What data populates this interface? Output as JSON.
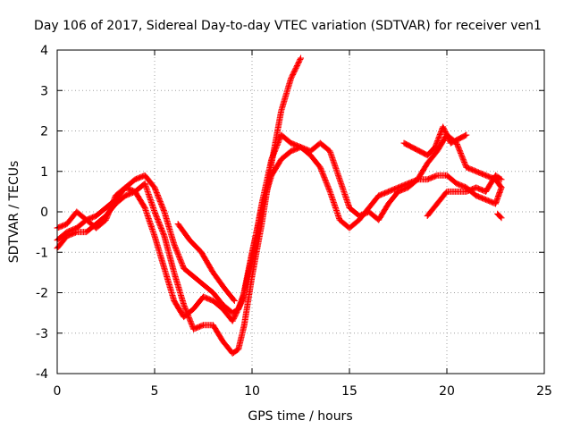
{
  "chart_data": {
    "type": "scatter",
    "title": "Day 106 of 2017, Sidereal Day-to-day VTEC variation (SDTVAR) for receiver ven1",
    "xlabel": "GPS time / hours",
    "ylabel": "SDTVAR / TECUs",
    "xlim": [
      0,
      25
    ],
    "ylim": [
      -4,
      4
    ],
    "xticks": [
      0,
      5,
      10,
      15,
      20,
      25
    ],
    "yticks": [
      -4,
      -3,
      -2,
      -1,
      0,
      1,
      2,
      3,
      4
    ],
    "grid": true,
    "marker": "+",
    "color": "#ff0000",
    "series": [
      {
        "x": [
          0.0,
          0.5,
          1.0,
          1.5,
          2.0,
          2.5,
          3.0,
          3.5,
          4.0,
          4.5,
          5.0,
          5.5,
          6.0,
          6.5,
          7.0,
          7.5,
          8.0,
          8.5,
          9.0,
          9.3,
          9.6,
          10.0,
          10.5,
          11.0,
          11.5,
          12.0,
          12.5
        ],
        "y": [
          -0.9,
          -0.6,
          -0.5,
          -0.5,
          -0.3,
          -0.1,
          0.2,
          0.4,
          0.5,
          0.7,
          0.0,
          -0.6,
          -1.5,
          -2.3,
          -2.9,
          -2.8,
          -2.8,
          -3.2,
          -3.5,
          -3.4,
          -2.8,
          -1.6,
          -0.3,
          1.2,
          2.5,
          3.3,
          3.8
        ]
      },
      {
        "x": [
          0.0,
          0.5,
          1.0,
          1.5,
          2.0,
          2.5,
          3.0,
          3.5,
          4.0,
          4.5,
          5.0,
          5.5,
          6.0,
          6.5,
          7.0,
          7.5,
          8.0,
          8.5,
          9.0,
          9.5,
          10.0,
          10.5,
          11.0,
          11.5,
          12.0,
          12.5,
          13.0,
          13.5,
          14.0,
          14.5,
          15.0,
          15.5,
          16.0,
          16.5,
          17.0,
          17.5,
          18.0,
          18.5,
          19.0,
          19.5,
          20.0,
          20.5,
          21.0,
          21.5,
          22.0,
          22.5,
          22.8
        ],
        "y": [
          -0.4,
          -0.3,
          0.0,
          -0.2,
          -0.4,
          -0.2,
          0.4,
          0.6,
          0.5,
          0.1,
          -0.6,
          -1.4,
          -2.2,
          -2.6,
          -2.4,
          -2.1,
          -2.2,
          -2.4,
          -2.7,
          -2.2,
          -1.0,
          0.1,
          0.9,
          1.3,
          1.5,
          1.6,
          1.4,
          1.1,
          0.5,
          -0.2,
          -0.4,
          -0.2,
          0.1,
          0.4,
          0.5,
          0.6,
          0.7,
          0.8,
          0.8,
          0.9,
          0.9,
          0.7,
          0.6,
          0.4,
          0.3,
          0.2,
          0.6
        ]
      },
      {
        "x": [
          0.0,
          0.5,
          1.0,
          1.5,
          2.0,
          2.5,
          3.0,
          3.5,
          4.0,
          4.5,
          5.0,
          5.5,
          6.0,
          6.5,
          7.0,
          7.5,
          8.0,
          8.5,
          9.0,
          9.3,
          9.6,
          10.0,
          10.5,
          11.0,
          11.5,
          12.0,
          12.5,
          13.0,
          13.5,
          14.0,
          14.5,
          15.0,
          15.5,
          16.0,
          16.5,
          17.0,
          17.5,
          18.0,
          18.5,
          19.0,
          19.5,
          20.0,
          20.5,
          21.0,
          21.5,
          22.0,
          22.5,
          22.8
        ],
        "y": [
          -0.7,
          -0.5,
          -0.4,
          -0.2,
          -0.1,
          0.1,
          0.3,
          0.6,
          0.8,
          0.9,
          0.6,
          0.0,
          -0.8,
          -1.4,
          -1.6,
          -1.8,
          -2.0,
          -2.3,
          -2.5,
          -2.4,
          -2.0,
          -1.1,
          0.2,
          1.3,
          1.9,
          1.7,
          1.6,
          1.5,
          1.7,
          1.5,
          0.8,
          0.1,
          -0.1,
          0.0,
          -0.2,
          0.2,
          0.5,
          0.6,
          0.8,
          1.2,
          1.5,
          1.9,
          1.7,
          1.1,
          1.0,
          0.9,
          0.8,
          0.6
        ]
      },
      {
        "x": [
          6.2,
          6.8,
          7.4,
          8.0,
          8.6,
          9.1
        ],
        "y": [
          -0.3,
          -0.7,
          -1.0,
          -1.5,
          -1.9,
          -2.2
        ]
      },
      {
        "x": [
          17.8,
          18.2,
          18.6,
          19.0,
          19.4,
          19.8,
          20.2,
          20.6,
          21.0
        ],
        "y": [
          1.7,
          1.6,
          1.5,
          1.4,
          1.6,
          2.1,
          1.7,
          1.8,
          1.9
        ]
      },
      {
        "x": [
          19.0,
          19.5,
          20.0,
          20.5,
          21.0,
          21.5,
          22.0,
          22.5,
          22.8
        ],
        "y": [
          -0.1,
          0.2,
          0.5,
          0.5,
          0.5,
          0.6,
          0.5,
          0.9,
          0.8
        ]
      },
      {
        "x": [
          22.6,
          22.7,
          22.8
        ],
        "y": [
          -0.05,
          -0.1,
          -0.15
        ]
      }
    ]
  }
}
